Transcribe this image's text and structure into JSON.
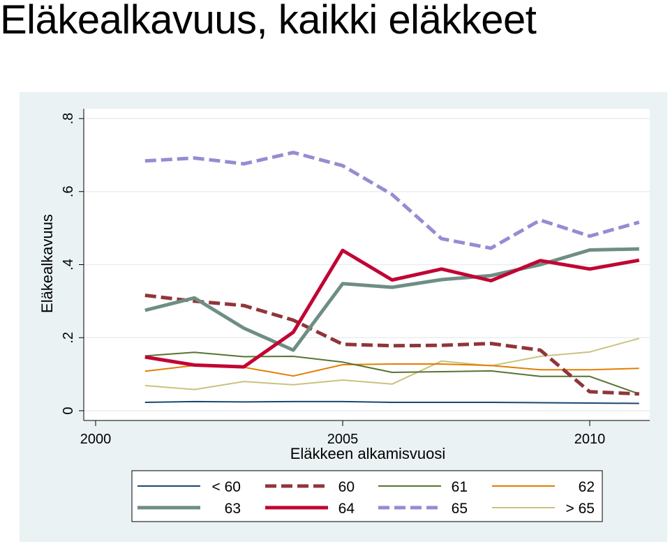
{
  "page": {
    "title": "Eläkealkavuus, kaikki eläkkeet"
  },
  "chart_data": {
    "type": "line",
    "title": "",
    "xlabel": "Eläkkeen alkamisvuosi",
    "ylabel": "Eläkealkavuus",
    "xlim": [
      2000,
      2011.2
    ],
    "ylim": [
      0,
      0.83
    ],
    "xticks": [
      2000,
      2005,
      2010
    ],
    "xtick_labels": [
      "2000",
      "2005",
      "2010"
    ],
    "yticks": [
      0,
      0.2,
      0.4,
      0.6,
      0.8
    ],
    "ytick_labels": [
      "0",
      ".2",
      ".4",
      ".6",
      ".8"
    ],
    "grid": true,
    "legend_position": "bottom",
    "x": [
      2001,
      2002,
      2003,
      2004,
      2005,
      2006,
      2007,
      2008,
      2009,
      2010,
      2011
    ],
    "series": [
      {
        "name": "< 60",
        "color": "#1a476f",
        "style": "solid",
        "weight": "thin",
        "values": [
          0.023,
          0.025,
          0.024,
          0.025,
          0.025,
          0.023,
          0.023,
          0.023,
          0.022,
          0.021,
          0.02
        ]
      },
      {
        "name": "60",
        "color": "#90353b",
        "style": "dashed",
        "weight": "thick",
        "values": [
          0.316,
          0.3,
          0.288,
          0.248,
          0.182,
          0.178,
          0.179,
          0.184,
          0.166,
          0.052,
          0.046
        ]
      },
      {
        "name": "61",
        "color": "#55752f",
        "style": "solid",
        "weight": "thin",
        "values": [
          0.15,
          0.16,
          0.148,
          0.149,
          0.133,
          0.105,
          0.107,
          0.109,
          0.094,
          0.094,
          0.046
        ]
      },
      {
        "name": "62",
        "color": "#e37e00",
        "style": "solid",
        "weight": "thin",
        "values": [
          0.108,
          0.124,
          0.119,
          0.095,
          0.126,
          0.128,
          0.128,
          0.124,
          0.112,
          0.112,
          0.116
        ]
      },
      {
        "name": "63",
        "color": "#6e8e84",
        "style": "solid",
        "weight": "thick",
        "values": [
          0.275,
          0.309,
          0.226,
          0.166,
          0.348,
          0.338,
          0.359,
          0.37,
          0.4,
          0.44,
          0.443
        ]
      },
      {
        "name": "64",
        "color": "#c10534",
        "style": "solid",
        "weight": "thick",
        "values": [
          0.147,
          0.125,
          0.12,
          0.215,
          0.439,
          0.358,
          0.388,
          0.356,
          0.411,
          0.388,
          0.412
        ]
      },
      {
        "name": "65",
        "color": "#938dd2",
        "style": "dashed",
        "weight": "thick",
        "values": [
          0.684,
          0.692,
          0.676,
          0.707,
          0.671,
          0.592,
          0.471,
          0.445,
          0.522,
          0.478,
          0.516
        ]
      },
      {
        "name": "> 65",
        "color": "#cac27e",
        "style": "solid",
        "weight": "thin",
        "values": [
          0.069,
          0.058,
          0.08,
          0.071,
          0.084,
          0.073,
          0.136,
          0.123,
          0.149,
          0.161,
          0.198
        ]
      }
    ]
  }
}
